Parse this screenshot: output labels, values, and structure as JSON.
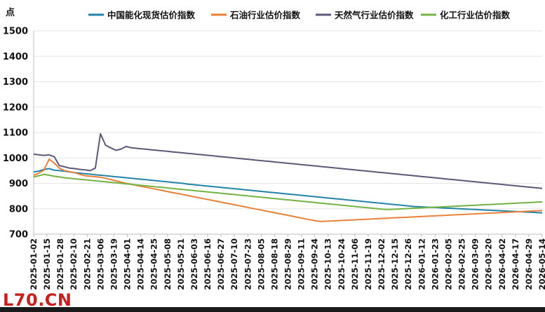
{
  "watermark": "L70.CN",
  "chart_data": {
    "type": "line",
    "unit_label": "点",
    "ylim": [
      700,
      1500
    ],
    "yticks": [
      700,
      800,
      900,
      1000,
      1100,
      1200,
      1300,
      1400,
      1500
    ],
    "x_tick_labels": [
      "2025-01-02",
      "2025-01-15",
      "2025-01-28",
      "2025-02-10",
      "2025-02-21",
      "2025-03-06",
      "2025-03-19",
      "2025-04-01",
      "2025-04-14",
      "2025-04-25",
      "2025-05-08",
      "2025-05-21",
      "2025-06-03",
      "2025-06-16",
      "2025-06-27",
      "2025-07-10",
      "2025-07-23",
      "2025-08-05",
      "2025-08-18",
      "2025-08-29",
      "2025-09-11",
      "2025-09-24",
      "2025-10-13",
      "2025-10-24",
      "2025-11-06",
      "2025-11-19",
      "2025-12-02",
      "2025-12-15",
      "2025-12-26",
      "2026-01-12",
      "2026-01-23",
      "2026-02-05",
      "2026-02-25",
      "2026-03-09",
      "2026-03-20",
      "2026-04-02",
      "2026-04-17",
      "2026-04-29",
      "2026-05-14"
    ],
    "grid": true,
    "legend_position": "top",
    "series": [
      {
        "name": "中国能化现货估价指数",
        "color": "#2383a8",
        "values": [
          945,
          948,
          955,
          958,
          952,
          950,
          948,
          945,
          942,
          940,
          938,
          936,
          934,
          932,
          930,
          928,
          926,
          924,
          922,
          920,
          918,
          916,
          914,
          912,
          910,
          908,
          906,
          904,
          902,
          900,
          897,
          895,
          893,
          891,
          889,
          887,
          885,
          883,
          881,
          879,
          877,
          875,
          873,
          871,
          869,
          867,
          865,
          863,
          861,
          859,
          857,
          855,
          853,
          851,
          849,
          847,
          845,
          843,
          841,
          839,
          837,
          835,
          833,
          831,
          829,
          827,
          825,
          823,
          821,
          819,
          817,
          815,
          813,
          811,
          809,
          808,
          807,
          806,
          805,
          804,
          803,
          802,
          801,
          800,
          799,
          798,
          797,
          796,
          795,
          794,
          793,
          792,
          791,
          790,
          789,
          788,
          787,
          786,
          785,
          784
        ]
      },
      {
        "name": "石油行业估价指数",
        "color": "#e8823a",
        "values": [
          932,
          940,
          952,
          995,
          980,
          960,
          950,
          946,
          942,
          935,
          930,
          928,
          926,
          924,
          920,
          915,
          910,
          905,
          900,
          896,
          892,
          888,
          884,
          880,
          876,
          872,
          868,
          864,
          860,
          856,
          852,
          848,
          844,
          840,
          836,
          832,
          828,
          824,
          820,
          816,
          812,
          808,
          804,
          800,
          796,
          792,
          788,
          784,
          780,
          776,
          772,
          768,
          764,
          760,
          756,
          752,
          750,
          751,
          752,
          753,
          754,
          755,
          756,
          757,
          758,
          759,
          760,
          761,
          762,
          763,
          764,
          765,
          766,
          767,
          768,
          769,
          770,
          771,
          772,
          773,
          774,
          775,
          776,
          777,
          778,
          779,
          780,
          781,
          782,
          783,
          784,
          785,
          786,
          787,
          788,
          789,
          790,
          791,
          792,
          793
        ]
      },
      {
        "name": "天然气行业估价指数",
        "color": "#5d5877",
        "values": [
          1015,
          1012,
          1010,
          1012,
          1005,
          970,
          965,
          960,
          958,
          955,
          953,
          950,
          960,
          1095,
          1050,
          1040,
          1030,
          1035,
          1045,
          1040,
          1038,
          1036,
          1034,
          1032,
          1030,
          1028,
          1026,
          1024,
          1022,
          1020,
          1018,
          1016,
          1014,
          1012,
          1010,
          1008,
          1006,
          1004,
          1002,
          1000,
          998,
          996,
          994,
          992,
          990,
          988,
          986,
          984,
          982,
          980,
          978,
          976,
          974,
          972,
          970,
          968,
          966,
          964,
          962,
          960,
          958,
          956,
          954,
          952,
          950,
          948,
          946,
          944,
          942,
          940,
          938,
          936,
          934,
          932,
          930,
          928,
          926,
          924,
          922,
          920,
          918,
          916,
          914,
          912,
          910,
          908,
          906,
          904,
          902,
          900,
          898,
          896,
          894,
          892,
          890,
          888,
          886,
          884,
          882,
          880
        ]
      },
      {
        "name": "化工行业估价指数",
        "color": "#74b244",
        "values": [
          925,
          930,
          935,
          932,
          928,
          925,
          922,
          920,
          918,
          916,
          914,
          912,
          910,
          908,
          906,
          904,
          902,
          900,
          898,
          896,
          894,
          892,
          890,
          888,
          886,
          884,
          882,
          880,
          878,
          876,
          874,
          872,
          870,
          868,
          866,
          864,
          862,
          860,
          858,
          856,
          854,
          852,
          850,
          848,
          846,
          844,
          842,
          840,
          838,
          836,
          834,
          832,
          830,
          828,
          826,
          824,
          822,
          820,
          818,
          816,
          814,
          812,
          810,
          808,
          806,
          804,
          802,
          800,
          798,
          797,
          798,
          799,
          800,
          801,
          802,
          803,
          804,
          805,
          806,
          807,
          808,
          809,
          810,
          811,
          812,
          813,
          814,
          815,
          816,
          817,
          818,
          819,
          820,
          821,
          822,
          823,
          824,
          825,
          826,
          827
        ]
      }
    ]
  }
}
